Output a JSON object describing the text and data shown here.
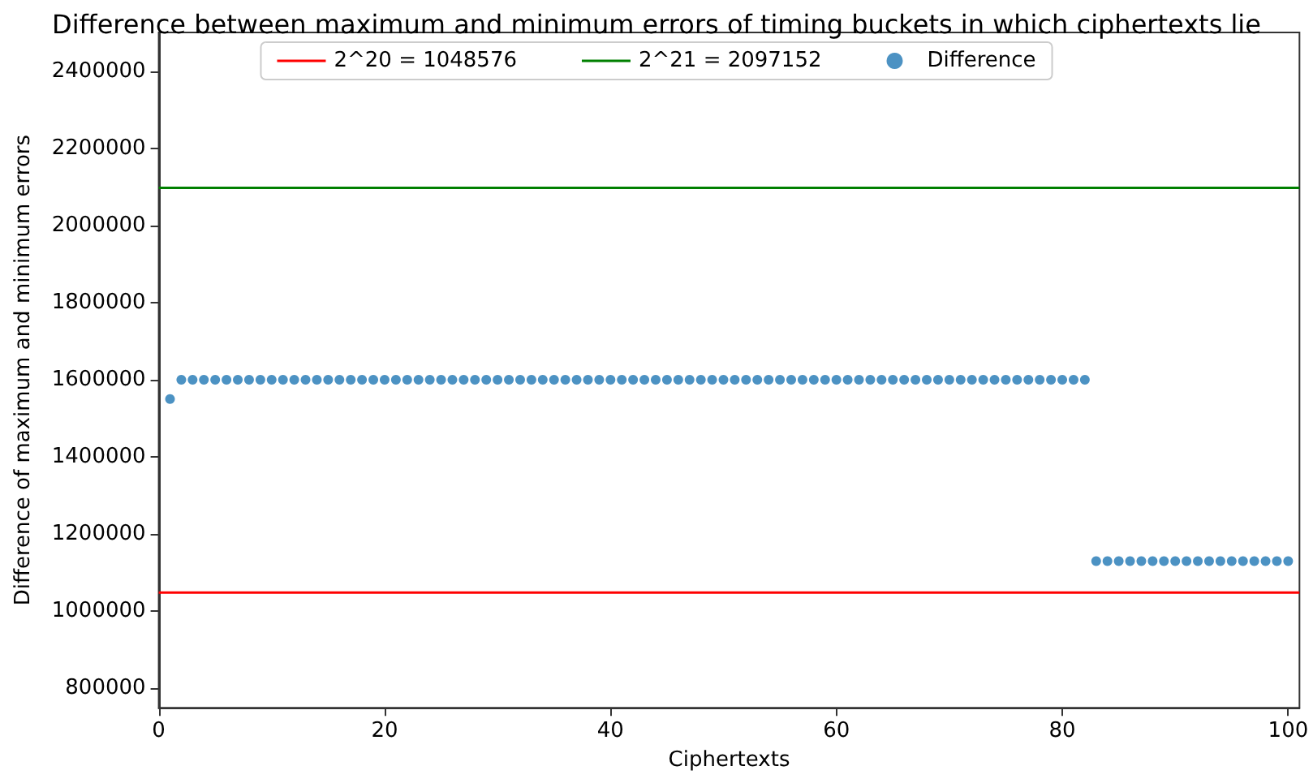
{
  "chart_data": {
    "type": "scatter",
    "title": "Difference between maximum and minimum errors of timing buckets in which ciphertexts lie",
    "xlabel": "Ciphertexts",
    "ylabel": "Difference of maximum and minimum errors",
    "xlim": [
      0,
      101
    ],
    "xticks": [
      0,
      20,
      40,
      60,
      80,
      100
    ],
    "ylim": [
      750000,
      2500000
    ],
    "yticks": [
      800000,
      1000000,
      1200000,
      1400000,
      1600000,
      1800000,
      2000000,
      2200000,
      2400000
    ],
    "grid": false,
    "legend": "top",
    "series": [
      {
        "name": "2^20 = 1048576",
        "type": "line",
        "color": "#ff0000",
        "x": [
          0,
          101
        ],
        "values": [
          1048576,
          1048576
        ]
      },
      {
        "name": "2^21 = 2097152",
        "type": "line",
        "color": "#008000",
        "x": [
          0,
          101
        ],
        "values": [
          2097152,
          2097152
        ]
      },
      {
        "name": "Difference",
        "marker": "circle",
        "color": "#1f77b4",
        "x": [
          1,
          2,
          3,
          4,
          5,
          6,
          7,
          8,
          9,
          10,
          11,
          12,
          13,
          14,
          15,
          16,
          17,
          18,
          19,
          20,
          21,
          22,
          23,
          24,
          25,
          26,
          27,
          28,
          29,
          30,
          31,
          32,
          33,
          34,
          35,
          36,
          37,
          38,
          39,
          40,
          41,
          42,
          43,
          44,
          45,
          46,
          47,
          48,
          49,
          50,
          51,
          52,
          53,
          54,
          55,
          56,
          57,
          58,
          59,
          60,
          61,
          62,
          63,
          64,
          65,
          66,
          67,
          68,
          69,
          70,
          71,
          72,
          73,
          74,
          75,
          76,
          77,
          78,
          79,
          80,
          81,
          82,
          83,
          84,
          85,
          86,
          87,
          88,
          89,
          90,
          91,
          92,
          93,
          94,
          95,
          96,
          97,
          98,
          99,
          100
        ],
        "values": [
          1550000,
          1600000,
          1600000,
          1600000,
          1600000,
          1600000,
          1600000,
          1600000,
          1600000,
          1600000,
          1600000,
          1600000,
          1600000,
          1600000,
          1600000,
          1600000,
          1600000,
          1600000,
          1600000,
          1600000,
          1600000,
          1600000,
          1600000,
          1600000,
          1600000,
          1600000,
          1600000,
          1600000,
          1600000,
          1600000,
          1600000,
          1600000,
          1600000,
          1600000,
          1600000,
          1600000,
          1600000,
          1600000,
          1600000,
          1600000,
          1600000,
          1600000,
          1600000,
          1600000,
          1600000,
          1600000,
          1600000,
          1600000,
          1600000,
          1600000,
          1600000,
          1600000,
          1600000,
          1600000,
          1600000,
          1600000,
          1600000,
          1600000,
          1600000,
          1600000,
          1600000,
          1600000,
          1600000,
          1600000,
          1600000,
          1600000,
          1600000,
          1600000,
          1600000,
          1600000,
          1600000,
          1600000,
          1600000,
          1600000,
          1600000,
          1600000,
          1600000,
          1600000,
          1600000,
          1600000,
          1600000,
          1600000,
          1130000,
          1130000,
          1130000,
          1130000,
          1130000,
          1130000,
          1130000,
          1130000,
          1130000,
          1130000,
          1130000,
          1130000,
          1130000,
          1130000,
          1130000,
          1130000,
          1130000,
          1130000
        ]
      }
    ]
  }
}
